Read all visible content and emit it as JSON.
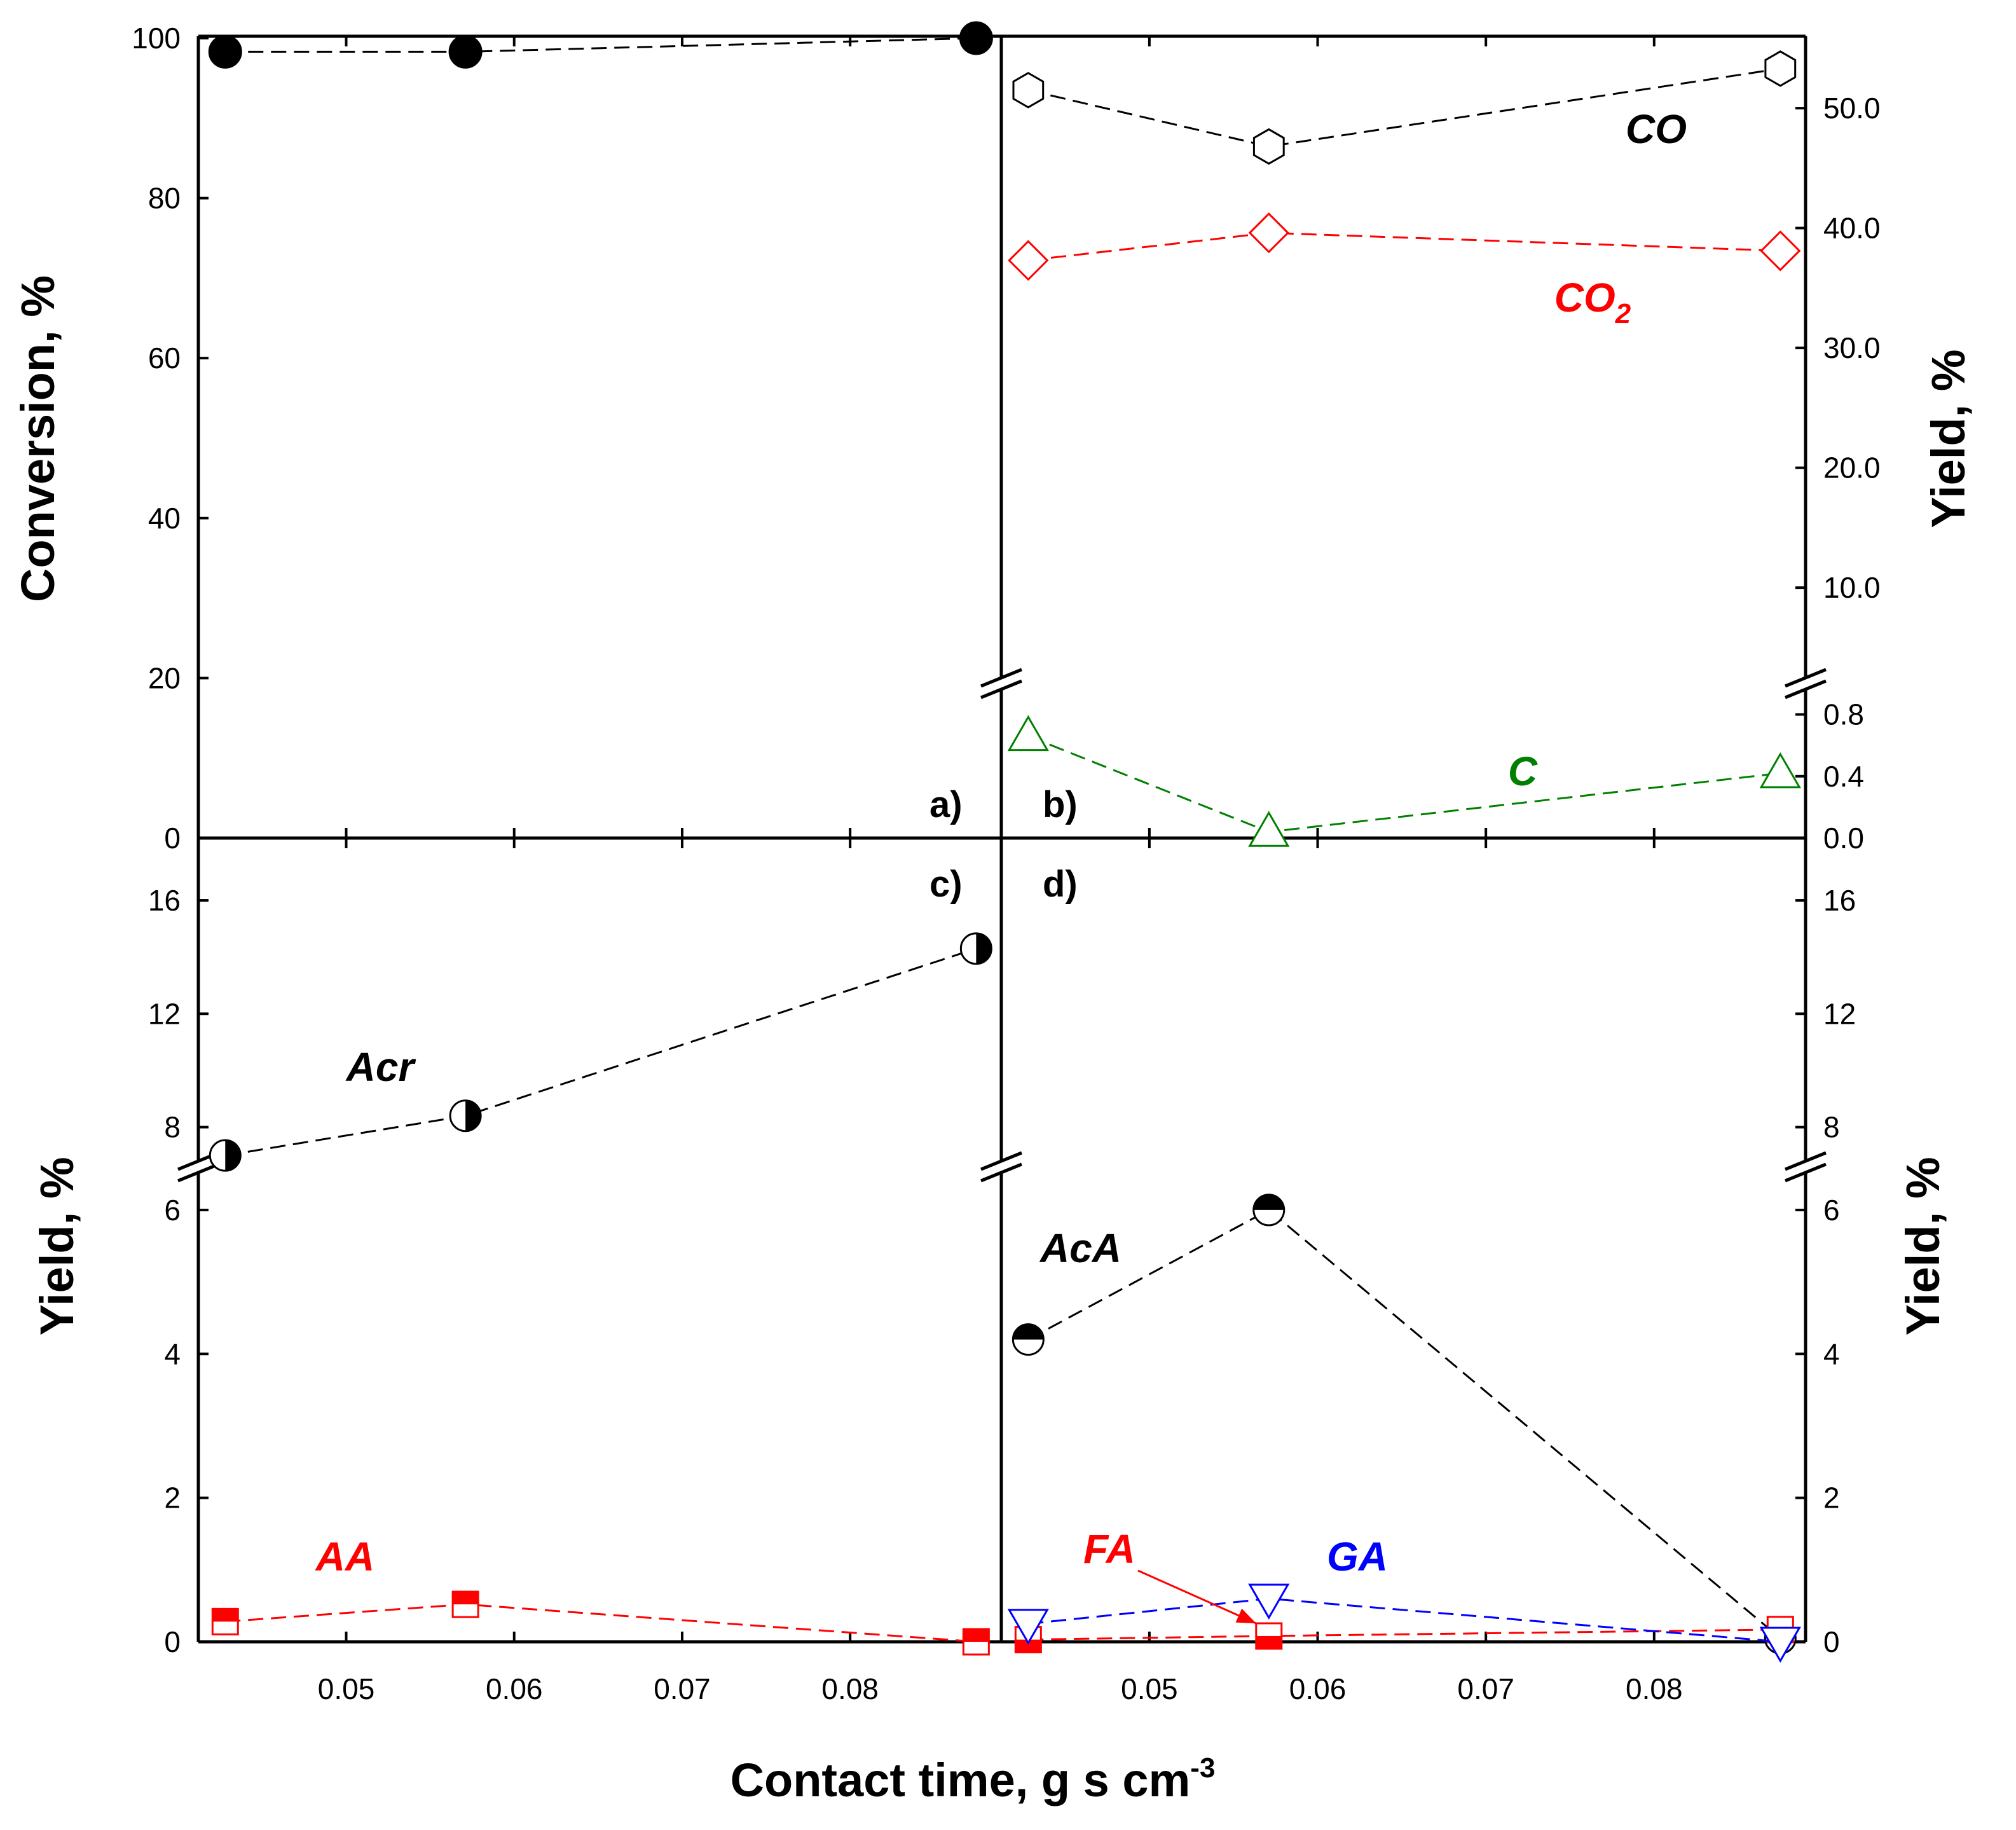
{
  "chart_data": {
    "type": "scatter",
    "x_label_text": "Contact time, g s cm",
    "x_label_sup": "-3",
    "x_ticks": [
      "0.05",
      "0.06",
      "0.07",
      "0.08"
    ],
    "colors": {
      "black": "#000000",
      "red": "#ff0000",
      "green": "#008000",
      "blue": "#0000ff"
    },
    "panels": [
      {
        "id": "a",
        "label": "a)",
        "ylabel": "Conversion, %",
        "y_ticks": [
          "0",
          "20",
          "40",
          "60",
          "80",
          "100"
        ],
        "ylim": [
          0,
          100
        ],
        "series": [
          {
            "name": "Conversion",
            "color": "black",
            "marker": "circle-filled",
            "x": [
              0.0428,
              0.0571,
              0.0875
            ],
            "y": [
              98.3,
              98.3,
              100
            ]
          }
        ]
      },
      {
        "id": "b",
        "label": "b)",
        "ylabel": "Yield, %",
        "y_ticks_upper": [
          "10.0",
          "20.0",
          "30.0",
          "40.0",
          "50.0"
        ],
        "y_ticks_lower": [
          "0.0",
          "0.4",
          "0.8"
        ],
        "ylim_upper": [
          2.0,
          56.0
        ],
        "ylim_lower": [
          0.0,
          1.0
        ],
        "series": [
          {
            "name": "CO",
            "label": "CO",
            "color": "black",
            "marker": "hexagon-open",
            "x": [
              0.0428,
              0.0571,
              0.0875
            ],
            "y": [
              51.5,
              46.8,
              53.3
            ]
          },
          {
            "name": "CO2",
            "label": "CO",
            "label_sub": "2",
            "color": "red",
            "marker": "diamond-open",
            "x": [
              0.0428,
              0.0571,
              0.0875
            ],
            "y": [
              37.3,
              39.6,
              38.1
            ]
          },
          {
            "name": "C",
            "label": "C",
            "color": "green",
            "marker": "triangle-up-open",
            "x": [
              0.0428,
              0.0571,
              0.0875
            ],
            "y": [
              0.66,
              0.04,
              0.42
            ]
          }
        ]
      },
      {
        "id": "c",
        "label": "c)",
        "ylabel": "Yield, %",
        "y_ticks_upper": [
          "8",
          "12",
          "16"
        ],
        "y_ticks_lower": [
          "0",
          "2",
          "4",
          "6"
        ],
        "ylim_upper": [
          6.6,
          18.2
        ],
        "ylim_lower": [
          0,
          6.6
        ],
        "series": [
          {
            "name": "Acr",
            "label": "Acr",
            "color": "black",
            "marker": "circle-half-right",
            "x": [
              0.0428,
              0.0571,
              0.0875
            ],
            "y": [
              7.0,
              8.4,
              14.3
            ]
          },
          {
            "name": "AA",
            "label": "AA",
            "color": "red",
            "marker": "square-half-top",
            "x": [
              0.0428,
              0.0571,
              0.0875
            ],
            "y": [
              0.28,
              0.52,
              0.0
            ]
          }
        ]
      },
      {
        "id": "d",
        "label": "d)",
        "ylabel": "Yield, %",
        "y_ticks_upper": [
          "8",
          "12",
          "16"
        ],
        "y_ticks_lower": [
          "0",
          "2",
          "4",
          "6"
        ],
        "ylim_upper": [
          6.6,
          18.2
        ],
        "ylim_lower": [
          0,
          6.6
        ],
        "series": [
          {
            "name": "AcA",
            "label": "AcA",
            "color": "black",
            "marker": "circle-half-top",
            "x": [
              0.0428,
              0.0571,
              0.0875
            ],
            "y": [
              4.2,
              6.0,
              0.05
            ]
          },
          {
            "name": "GA",
            "label": "GA",
            "color": "blue",
            "marker": "triangle-down-open",
            "x": [
              0.0428,
              0.0571,
              0.0875
            ],
            "y": [
              0.25,
              0.6,
              0.0
            ]
          },
          {
            "name": "FA",
            "label": "FA",
            "color": "red",
            "marker": "square-half-bottom",
            "x": [
              0.0428,
              0.0571,
              0.0875
            ],
            "y": [
              0.03,
              0.08,
              0.17
            ]
          }
        ]
      }
    ]
  }
}
